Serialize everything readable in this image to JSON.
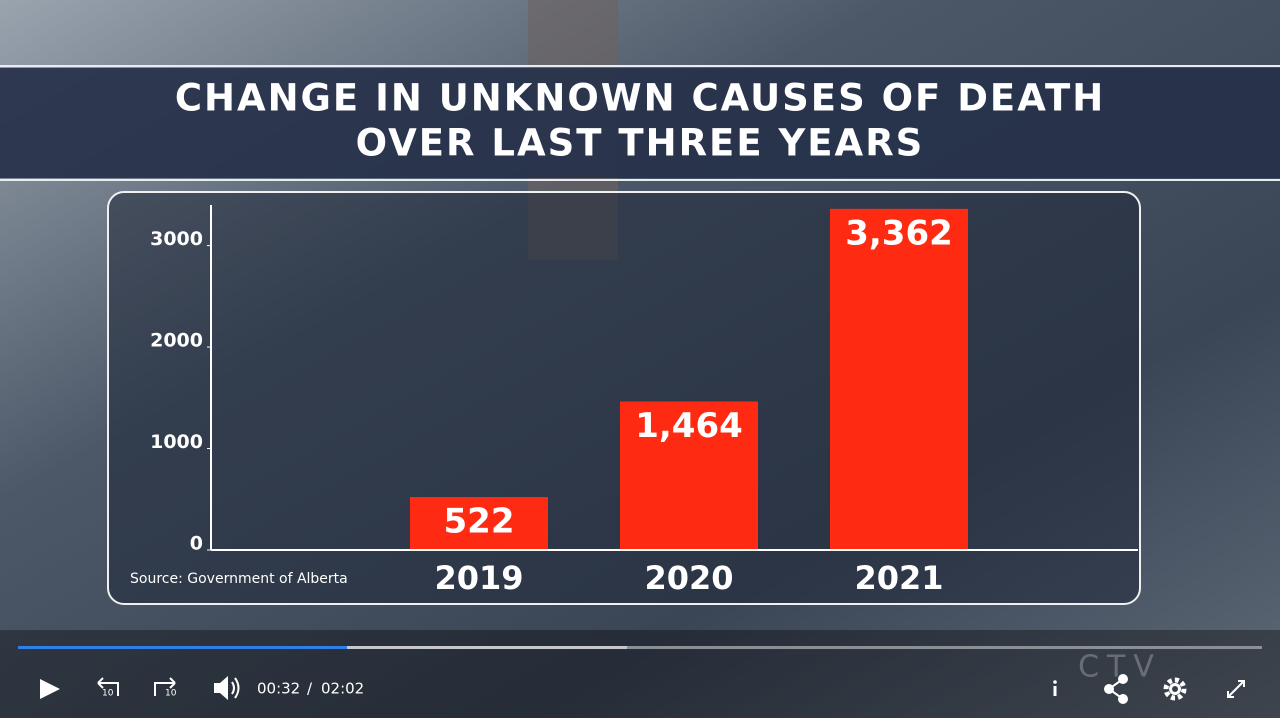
{
  "chart_data": {
    "type": "bar",
    "title": [
      "CHANGE IN UNKNOWN CAUSES OF DEATH",
      "OVER LAST THREE YEARS"
    ],
    "categories": [
      "2019",
      "2020",
      "2021"
    ],
    "values": [
      522,
      1464,
      3362
    ],
    "value_labels": [
      "522",
      "1,464",
      "3,362"
    ],
    "color": "#ff2a12",
    "ylim": [
      0,
      3400
    ],
    "yticks": [
      0,
      1000,
      2000,
      3000
    ],
    "source": "Source: Government of Alberta"
  },
  "player": {
    "current_time": "00:32",
    "separator": "/",
    "duration": "02:02",
    "skip_seconds": "10",
    "watermark": "CTV"
  }
}
